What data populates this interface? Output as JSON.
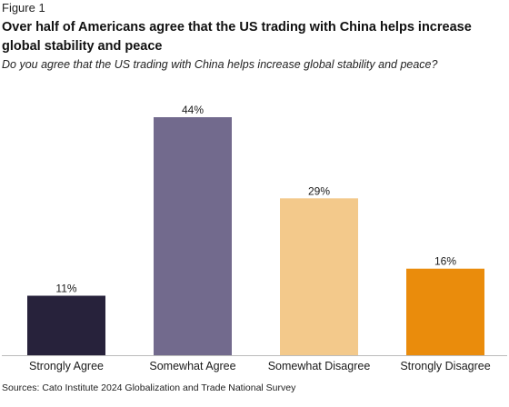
{
  "figure_label": "Figure 1",
  "title": "Over half of Americans agree that the US trading with China helps increase global stability and peace",
  "subtitle": "Do you agree that the US trading with China helps increase global stability and peace?",
  "source": "Sources: Cato Institute 2024 Globalization and Trade National Survey",
  "chart_data": {
    "type": "bar",
    "title": "Over half of Americans agree that the US trading with China helps increase global stability and peace",
    "subtitle": "Do you agree that the US trading with China helps increase global stability and peace?",
    "categories": [
      "Strongly Agree",
      "Somewhat Agree",
      "Somewhat Disagree",
      "Strongly Disagree"
    ],
    "values": [
      11,
      44,
      29,
      16
    ],
    "data_labels": [
      "11%",
      "44%",
      "29%",
      "16%"
    ],
    "colors": [
      "#27223b",
      "#726a8d",
      "#f3c98b",
      "#ea8c0c"
    ],
    "xlabel": "",
    "ylabel": "",
    "ylim": [
      0,
      44
    ],
    "grid": false,
    "legend": "none",
    "baseline_color": "#bbbbbb"
  }
}
